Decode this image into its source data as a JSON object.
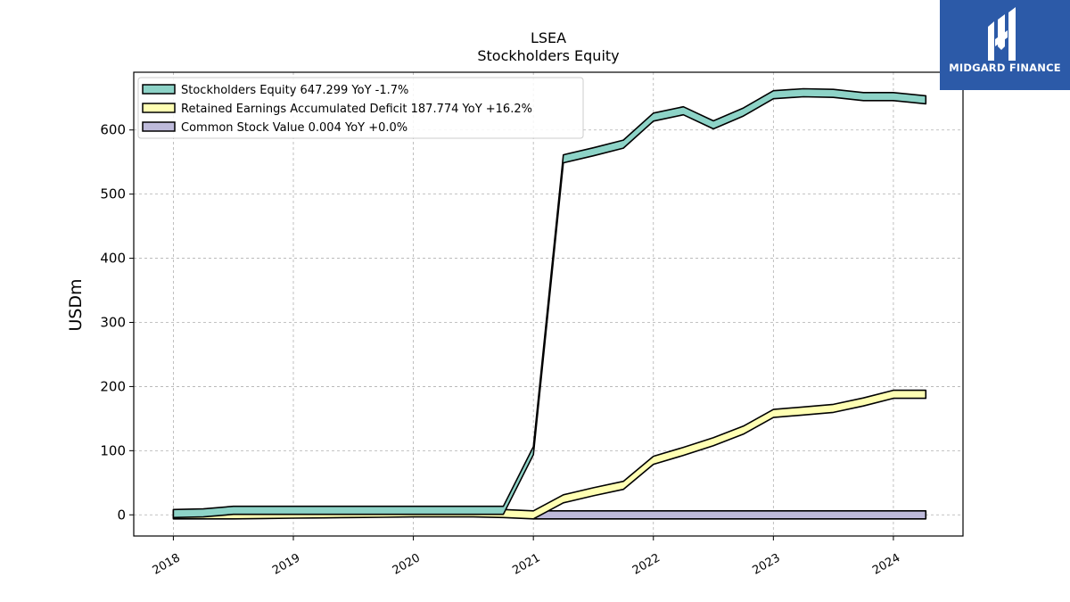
{
  "chart_data": {
    "type": "area",
    "title": "LSEA",
    "subtitle": "Stockholders  Equity",
    "ylabel": "USDm",
    "xlabel": "",
    "ylim": [
      -33,
      690
    ],
    "xlim": [
      2017.67,
      2024.58
    ],
    "y_ticks": [
      "0",
      "100",
      "200",
      "300",
      "400",
      "500",
      "600"
    ],
    "x_ticks": [
      "2018",
      "2019",
      "2020",
      "2021",
      "2022",
      "2023",
      "2024"
    ],
    "grid": true,
    "legend_position": "top-left",
    "series": [
      {
        "name": "Stockholders Equity",
        "legend": "Stockholders Equity  647.299 YoY -1.7%",
        "color": "#8dd3c7",
        "x": [
          2018.0,
          2018.25,
          2018.5,
          2018.75,
          2019.0,
          2019.25,
          2019.5,
          2019.75,
          2020.0,
          2020.25,
          2020.5,
          2020.75,
          2021.0,
          2021.25,
          2021.5,
          2021.75,
          2022.0,
          2022.25,
          2022.5,
          2022.75,
          2023.0,
          2023.25,
          2023.5,
          2023.75,
          2024.0,
          2024.27
        ],
        "y": [
          2,
          3,
          7,
          7,
          7,
          7,
          7,
          7,
          7,
          7,
          7,
          7,
          100,
          555,
          566,
          578,
          620,
          630,
          608,
          628,
          655,
          658,
          657,
          652,
          652,
          647
        ]
      },
      {
        "name": "Retained Earnings Accumulated Deficit",
        "legend": "Retained Earnings Accumulated Deficit  187.774 YoY +16.2%",
        "color": "#ffffb3",
        "x": [
          2018.0,
          2018.25,
          2018.5,
          2018.75,
          2019.0,
          2019.25,
          2019.5,
          2019.75,
          2020.0,
          2020.25,
          2020.5,
          2020.75,
          2021.0,
          2021.25,
          2021.5,
          2021.75,
          2022.0,
          2022.25,
          2022.5,
          2022.75,
          2023.0,
          2023.25,
          2023.5,
          2023.75,
          2024.0,
          2024.27
        ],
        "y": [
          0,
          0,
          0,
          0.5,
          1,
          1.5,
          2,
          2.5,
          3,
          3,
          3,
          2,
          0,
          25,
          36,
          46,
          85,
          99,
          114,
          132,
          158,
          162,
          166,
          176,
          188,
          188
        ]
      },
      {
        "name": "Common Stock Value",
        "legend": "Common Stock Value  0.004 YoY +0.0%",
        "color": "#bebada",
        "x": [
          2021.0,
          2024.27
        ],
        "y": [
          0.004,
          0.004
        ]
      }
    ]
  },
  "logo": {
    "text": "MIDGARD FINANCE",
    "color": "#2c5aa8"
  }
}
